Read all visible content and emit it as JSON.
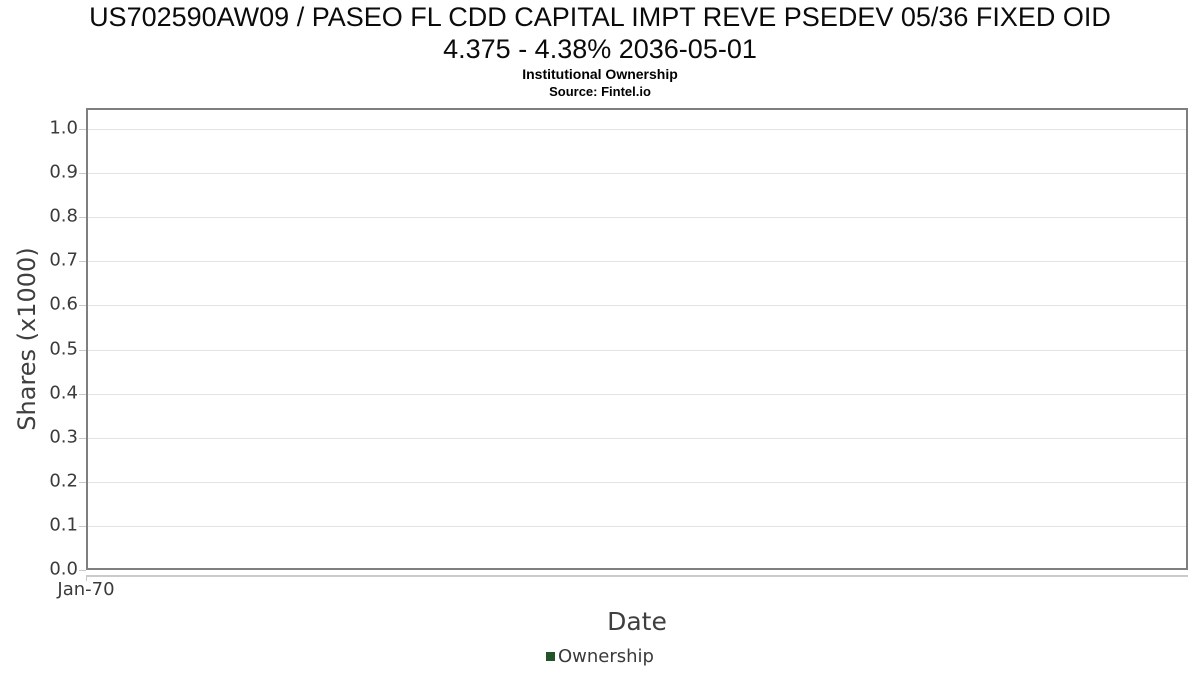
{
  "display": {
    "title_line1": "US702590AW09 / PASEO FL CDD CAPITAL IMPT REVE PSEDEV 05/36 FIXED OID",
    "title_line2": "4.375 - 4.38% 2036-05-01"
  },
  "chart_data": {
    "type": "line",
    "title": "US702590AW09 / PASEO FL CDD CAPITAL IMPT REVE PSEDEV 05/36 FIXED OID 4.375 - 4.38% 2036-05-01",
    "subtitle": "Institutional Ownership",
    "source": "Source: Fintel.io",
    "xlabel": "Date",
    "ylabel": "Shares (x1000)",
    "x_tick_labels": [
      "Jan-70"
    ],
    "y_tick_labels": [
      "0.0",
      "0.1",
      "0.2",
      "0.3",
      "0.4",
      "0.5",
      "0.6",
      "0.7",
      "0.8",
      "0.9",
      "1.0"
    ],
    "ylim": [
      0,
      1.05
    ],
    "grid": "horizontal",
    "legend_position": "bottom",
    "series": [
      {
        "name": "Ownership",
        "color": "#235429",
        "x": [],
        "values": []
      }
    ]
  },
  "colors": {
    "grid": "#e4e4e4",
    "plot_border": "#7f7f7f",
    "axis_line": "#cbcbcb",
    "tick_text": "#3b3b3b",
    "axis_title_text": "#3f3f3f",
    "legend_green": "#235429"
  }
}
